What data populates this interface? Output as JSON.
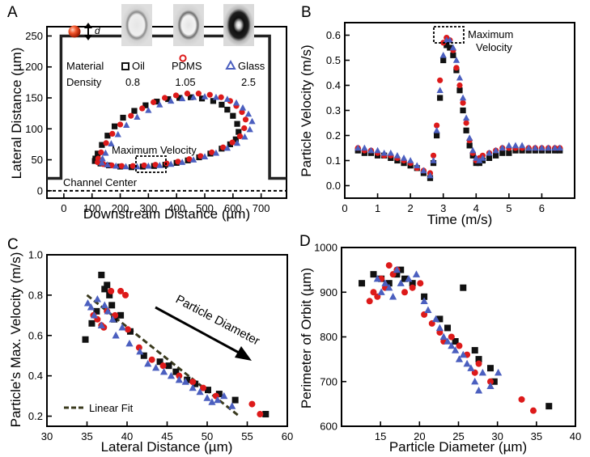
{
  "chart_data": [
    {
      "panel": "A",
      "type": "line",
      "xlabel": "Downstream Distance (µm)",
      "ylabel": "Lateral Distance (µm)",
      "xlim": [
        -60,
        790
      ],
      "ylim": [
        -12,
        265
      ],
      "x_ticks": [
        "0",
        "100",
        "200",
        "300",
        "400",
        "500",
        "600",
        "700"
      ],
      "y_ticks": [
        "0",
        "50",
        "100",
        "150",
        "200",
        "250"
      ],
      "annotations": {
        "max_velocity": "Maximum Velocity",
        "channel_center": "Channel Center",
        "diameter_symbol": "d"
      },
      "legend": {
        "row1_label": "Material",
        "row2_label": "Density",
        "entries": [
          {
            "material": "Oil",
            "density": "0.8",
            "color": "#111111",
            "marker": "square"
          },
          {
            "material": "PDMS",
            "density": "1.05",
            "color": "#dd1a1a",
            "marker": "circle"
          },
          {
            "material": "Glass",
            "density": "2.5",
            "color": "#4b5fbf",
            "marker": "triangle"
          }
        ]
      },
      "channel_wall": [
        [
          -60,
          20
        ],
        [
          -10,
          20
        ],
        [
          -10,
          250
        ],
        [
          730,
          250
        ],
        [
          730,
          20
        ],
        [
          790,
          20
        ]
      ],
      "series": [
        {
          "name": "Oil",
          "color": "#111111",
          "marker": "square",
          "x": [
            110,
            130,
            160,
            200,
            240,
            280,
            320,
            360,
            400,
            440,
            480,
            520,
            560,
            590,
            610,
            620,
            615,
            600,
            580,
            560,
            530,
            490,
            450,
            410,
            370,
            330,
            290,
            250,
            210,
            180,
            155,
            135,
            120,
            112
          ],
          "y": [
            48,
            44,
            41,
            39,
            38,
            39,
            40,
            42,
            45,
            49,
            54,
            60,
            68,
            75,
            83,
            95,
            108,
            121,
            131,
            139,
            145,
            149,
            151,
            150,
            148,
            144,
            138,
            129,
            118,
            104,
            89,
            74,
            60,
            52
          ]
        },
        {
          "name": "PDMS",
          "color": "#dd1a1a",
          "marker": "circle",
          "x": [
            120,
            140,
            170,
            205,
            245,
            285,
            325,
            365,
            405,
            445,
            485,
            525,
            565,
            598,
            625,
            640,
            645,
            632,
            612,
            590,
            558,
            518,
            478,
            438,
            398,
            358,
            318,
            278,
            238,
            200,
            172,
            150,
            132,
            122
          ],
          "y": [
            46,
            43,
            41,
            40,
            40,
            41,
            42,
            44,
            47,
            51,
            56,
            62,
            70,
            78,
            88,
            101,
            115,
            127,
            137,
            145,
            151,
            155,
            157,
            157,
            154,
            150,
            143,
            133,
            121,
            107,
            92,
            77,
            62,
            52
          ]
        },
        {
          "name": "Glass",
          "color": "#4b5fbf",
          "marker": "triangle",
          "x": [
            135,
            155,
            185,
            220,
            260,
            300,
            340,
            380,
            420,
            460,
            500,
            540,
            580,
            615,
            642,
            660,
            668,
            655,
            635,
            612,
            580,
            540,
            500,
            460,
            420,
            380,
            340,
            300,
            260,
            222,
            192,
            168,
            148,
            137
          ],
          "y": [
            45,
            42,
            40,
            39,
            39,
            40,
            41,
            43,
            46,
            50,
            55,
            61,
            69,
            77,
            87,
            99,
            112,
            124,
            134,
            142,
            148,
            151,
            152,
            151,
            149,
            145,
            139,
            130,
            119,
            106,
            91,
            76,
            61,
            52
          ]
        }
      ]
    },
    {
      "panel": "B",
      "type": "scatter",
      "xlabel": "Time (m/s)",
      "ylabel": "Particle Velocity (m/s)",
      "xlim": [
        0,
        7
      ],
      "ylim": [
        -0.05,
        0.65
      ],
      "x_ticks": [
        "0",
        "1",
        "2",
        "3",
        "4",
        "5",
        "6"
      ],
      "y_ticks": [
        "0.0",
        "0.1",
        "0.2",
        "0.3",
        "0.4",
        "0.5",
        "0.6"
      ],
      "annotation": [
        "Maximum",
        "Velocity"
      ],
      "series": [
        {
          "name": "Oil",
          "color": "#111111",
          "marker": "square",
          "x": [
            0.4,
            0.6,
            0.8,
            1.0,
            1.2,
            1.4,
            1.6,
            1.8,
            2.0,
            2.2,
            2.4,
            2.6,
            2.7,
            2.8,
            2.9,
            3.0,
            3.1,
            3.2,
            3.3,
            3.4,
            3.5,
            3.6,
            3.7,
            3.8,
            3.9,
            4.0,
            4.1,
            4.2,
            4.4,
            4.6,
            4.8,
            5.0,
            5.2,
            5.4,
            5.6,
            5.8,
            6.0,
            6.2,
            6.4,
            6.55
          ],
          "y": [
            0.14,
            0.13,
            0.13,
            0.12,
            0.12,
            0.11,
            0.1,
            0.09,
            0.08,
            0.07,
            0.05,
            0.03,
            0.09,
            0.2,
            0.35,
            0.5,
            0.56,
            0.55,
            0.52,
            0.46,
            0.38,
            0.3,
            0.22,
            0.16,
            0.12,
            0.09,
            0.09,
            0.1,
            0.11,
            0.12,
            0.13,
            0.13,
            0.14,
            0.14,
            0.14,
            0.14,
            0.14,
            0.14,
            0.14,
            0.14
          ]
        },
        {
          "name": "PDMS",
          "color": "#dd1a1a",
          "marker": "circle",
          "x": [
            0.4,
            0.6,
            0.8,
            1.0,
            1.2,
            1.4,
            1.6,
            1.8,
            2.0,
            2.2,
            2.4,
            2.6,
            2.7,
            2.8,
            2.9,
            3.0,
            3.1,
            3.2,
            3.3,
            3.4,
            3.5,
            3.6,
            3.7,
            3.8,
            3.9,
            4.0,
            4.1,
            4.2,
            4.4,
            4.6,
            4.8,
            5.0,
            5.2,
            5.4,
            5.6,
            5.8,
            6.0,
            6.2,
            6.4,
            6.55
          ],
          "y": [
            0.15,
            0.14,
            0.14,
            0.13,
            0.12,
            0.12,
            0.11,
            0.1,
            0.09,
            0.07,
            0.06,
            0.05,
            0.12,
            0.24,
            0.42,
            0.57,
            0.59,
            0.58,
            0.54,
            0.47,
            0.4,
            0.33,
            0.25,
            0.18,
            0.13,
            0.1,
            0.11,
            0.12,
            0.13,
            0.14,
            0.15,
            0.15,
            0.15,
            0.15,
            0.15,
            0.15,
            0.15,
            0.15,
            0.15,
            0.15
          ]
        },
        {
          "name": "Glass",
          "color": "#4b5fbf",
          "marker": "triangle",
          "x": [
            0.4,
            0.6,
            0.8,
            1.0,
            1.2,
            1.4,
            1.6,
            1.8,
            2.0,
            2.2,
            2.4,
            2.6,
            2.7,
            2.8,
            2.9,
            3.0,
            3.1,
            3.2,
            3.3,
            3.4,
            3.5,
            3.6,
            3.7,
            3.8,
            3.9,
            4.0,
            4.1,
            4.2,
            4.4,
            4.6,
            4.8,
            5.0,
            5.2,
            5.4,
            5.6,
            5.8,
            6.0,
            6.2,
            6.4,
            6.55
          ],
          "y": [
            0.15,
            0.15,
            0.14,
            0.14,
            0.13,
            0.13,
            0.12,
            0.11,
            0.1,
            0.08,
            0.06,
            0.04,
            0.1,
            0.22,
            0.38,
            0.52,
            0.58,
            0.58,
            0.55,
            0.5,
            0.43,
            0.35,
            0.27,
            0.19,
            0.14,
            0.11,
            0.1,
            0.11,
            0.13,
            0.14,
            0.15,
            0.16,
            0.16,
            0.16,
            0.15,
            0.15,
            0.15,
            0.15,
            0.15,
            0.15
          ]
        }
      ]
    },
    {
      "panel": "C",
      "type": "scatter",
      "xlabel": "Lateral Distance (µm)",
      "ylabel": "Particle's Max. Velocity (m/s)",
      "xlim": [
        30,
        60
      ],
      "ylim": [
        0.15,
        1.0
      ],
      "x_ticks": [
        "30",
        "35",
        "40",
        "45",
        "50",
        "55",
        "60"
      ],
      "y_ticks": [
        "0.2",
        "0.4",
        "0.6",
        "0.8",
        "1.0"
      ],
      "annotation": "Particle Diameter",
      "legend_entry": "Linear Fit",
      "fit": {
        "x": [
          35,
          54
        ],
        "y": [
          0.8,
          0.2
        ],
        "color": "#3a3a1e"
      },
      "series": [
        {
          "name": "Oil",
          "color": "#111111",
          "marker": "square",
          "x": [
            34.8,
            35.6,
            36.2,
            36.8,
            37.2,
            37.5,
            37.8,
            38.1,
            38.4,
            39.2,
            40.4,
            42.1,
            44.1,
            45.2,
            46.1,
            47.5,
            48.5,
            50.1,
            51.5,
            53.5,
            57.3
          ],
          "y": [
            0.58,
            0.66,
            0.72,
            0.9,
            0.83,
            0.85,
            0.8,
            0.75,
            0.68,
            0.7,
            0.62,
            0.5,
            0.47,
            0.45,
            0.42,
            0.38,
            0.36,
            0.33,
            0.31,
            0.28,
            0.21
          ]
        },
        {
          "name": "PDMS",
          "color": "#dd1a1a",
          "marker": "circle",
          "x": [
            35.8,
            36.3,
            36.8,
            37.1,
            37.5,
            38.0,
            38.5,
            39.2,
            39.8,
            40.1,
            41.5,
            43.1,
            44.5,
            46.5,
            48.2,
            49.5,
            51.1,
            55.6,
            56.6
          ],
          "y": [
            0.7,
            0.68,
            0.65,
            0.64,
            0.72,
            0.82,
            0.7,
            0.82,
            0.8,
            0.63,
            0.54,
            0.48,
            0.45,
            0.4,
            0.37,
            0.34,
            0.3,
            0.26,
            0.21
          ]
        },
        {
          "name": "Glass",
          "color": "#4b5fbf",
          "marker": "triangle",
          "x": [
            35.1,
            35.5,
            35.9,
            36.3,
            36.8,
            37.2,
            37.6,
            38.2,
            38.6,
            39.4,
            40.3,
            41.6,
            42.6,
            43.6,
            44.6,
            45.5,
            46.5,
            47.3,
            48.2,
            49.1,
            50.0,
            50.6,
            51.3,
            52.1,
            53.1
          ],
          "y": [
            0.76,
            0.74,
            0.7,
            0.78,
            0.65,
            0.75,
            0.72,
            0.68,
            0.6,
            0.64,
            0.56,
            0.52,
            0.46,
            0.44,
            0.42,
            0.4,
            0.38,
            0.37,
            0.34,
            0.32,
            0.29,
            0.27,
            0.28,
            0.3,
            0.25
          ]
        }
      ]
    },
    {
      "panel": "D",
      "type": "scatter",
      "xlabel": "Particle Diameter (µm)",
      "ylabel": "Perimeter of Orbit (µm)",
      "xlim": [
        10,
        40
      ],
      "ylim": [
        600,
        1000
      ],
      "x_ticks": [
        "15",
        "20",
        "25",
        "30",
        "35",
        "40"
      ],
      "y_ticks": [
        "600",
        "700",
        "800",
        "900",
        "1000"
      ],
      "series": [
        {
          "name": "Oil",
          "color": "#111111",
          "marker": "square",
          "x": [
            12.6,
            14.1,
            15.1,
            16.1,
            17.1,
            17.6,
            18.1,
            19.1,
            20.6,
            22.6,
            23.6,
            24.6,
            25.6,
            27.1,
            27.6,
            29.1,
            29.6,
            36.6
          ],
          "y": [
            920,
            940,
            930,
            920,
            940,
            950,
            930,
            920,
            890,
            840,
            820,
            790,
            910,
            770,
            750,
            730,
            700,
            645
          ]
        },
        {
          "name": "PDMS",
          "color": "#dd1a1a",
          "marker": "circle",
          "x": [
            13.6,
            14.1,
            14.6,
            15.1,
            15.6,
            16.1,
            16.6,
            17.1,
            18.1,
            19.1,
            20.1,
            20.6,
            21.6,
            22.6,
            23.1,
            24.1,
            25.1,
            26.1,
            27.1,
            27.6,
            29.1,
            33.1,
            34.6
          ],
          "y": [
            880,
            900,
            890,
            930,
            910,
            960,
            940,
            950,
            900,
            910,
            920,
            850,
            830,
            810,
            790,
            800,
            780,
            760,
            720,
            740,
            700,
            660,
            635
          ]
        },
        {
          "name": "Glass",
          "color": "#4b5fbf",
          "marker": "triangle",
          "x": [
            14.6,
            15.1,
            15.6,
            16.1,
            16.6,
            17.1,
            17.6,
            18.6,
            19.6,
            20.6,
            21.1,
            22.1,
            22.6,
            23.1,
            23.6,
            24.1,
            24.6,
            25.1,
            25.6,
            26.1,
            26.6,
            27.1,
            27.6,
            28.1,
            29.1,
            30.1
          ],
          "y": [
            930,
            900,
            920,
            910,
            890,
            950,
            920,
            930,
            940,
            880,
            860,
            840,
            820,
            800,
            790,
            780,
            770,
            750,
            760,
            740,
            730,
            700,
            680,
            720,
            690,
            720
          ]
        }
      ]
    }
  ]
}
